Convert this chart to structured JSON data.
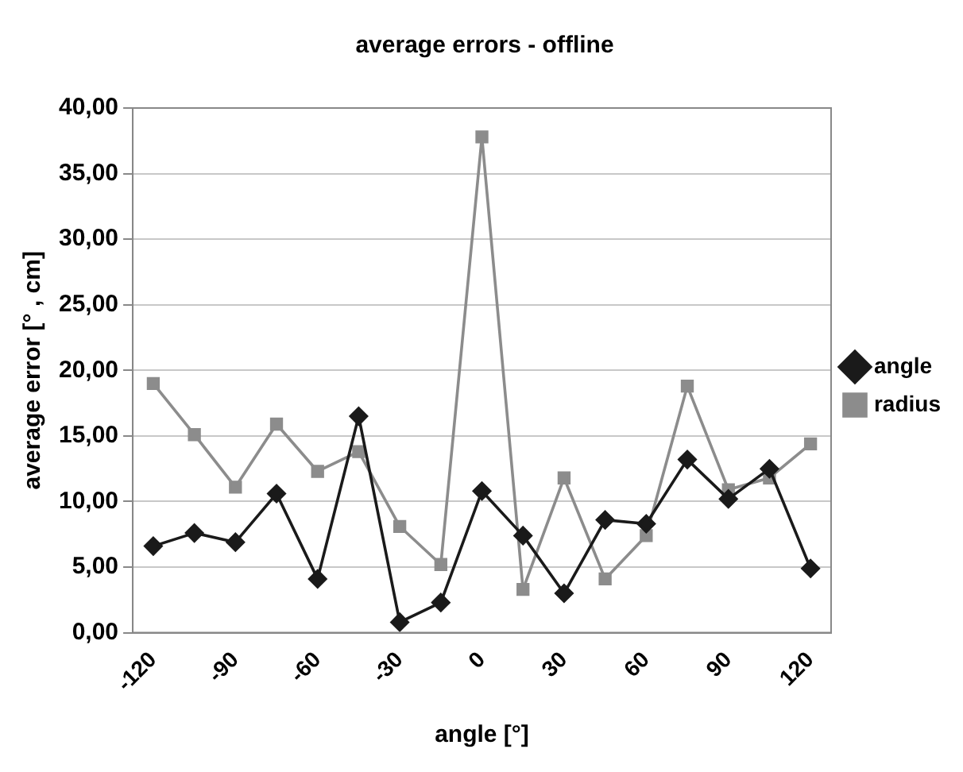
{
  "chart_data": {
    "type": "line",
    "title": "average errors - offline",
    "xlabel": "angle [°]",
    "ylabel": "average error [° , cm]",
    "categories": [
      "-120",
      null,
      "-90",
      null,
      "-60",
      null,
      "-30",
      null,
      "0",
      null,
      "30",
      null,
      "60",
      null,
      "90",
      null,
      "120"
    ],
    "series": [
      {
        "name": "angle",
        "color": "#1a1a1a",
        "marker": "diamond",
        "values": [
          6.6,
          7.6,
          6.9,
          10.6,
          4.1,
          16.5,
          0.8,
          2.3,
          10.8,
          7.4,
          3.0,
          8.6,
          8.3,
          13.2,
          10.2,
          12.5,
          4.9
        ]
      },
      {
        "name": "radius",
        "color": "#8c8c8c",
        "marker": "square",
        "values": [
          19.0,
          15.1,
          11.1,
          15.9,
          12.3,
          13.8,
          8.1,
          5.2,
          37.8,
          3.3,
          11.8,
          4.1,
          7.4,
          18.8,
          10.9,
          11.8,
          14.4
        ]
      }
    ],
    "ylim": [
      0,
      40
    ],
    "yticks": [
      {
        "value": 0,
        "label": "0,00"
      },
      {
        "value": 5,
        "label": "5,00"
      },
      {
        "value": 10,
        "label": "10,00"
      },
      {
        "value": 15,
        "label": "15,00"
      },
      {
        "value": 20,
        "label": "20,00"
      },
      {
        "value": 25,
        "label": "25,00"
      },
      {
        "value": 30,
        "label": "30,00"
      },
      {
        "value": 35,
        "label": "35,00"
      },
      {
        "value": 40,
        "label": "40,00"
      }
    ],
    "grid": "y",
    "legend": "right",
    "line_style": "solid"
  }
}
